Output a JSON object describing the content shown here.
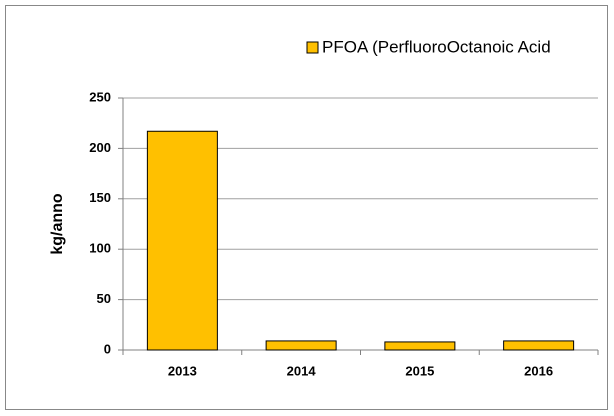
{
  "chart_data": {
    "type": "bar",
    "y_label": "kg/anno",
    "categories": [
      "2013",
      "2014",
      "2015",
      "2016"
    ],
    "series": [
      {
        "name": "PFOA (PerfluoroOctanoic Acid",
        "color": "#ffc000",
        "values": [
          217,
          9,
          8,
          9
        ]
      }
    ],
    "ylim": [
      0,
      250
    ],
    "yticks": [
      0,
      50,
      100,
      150,
      200,
      250
    ],
    "grid": true,
    "legend": "top"
  }
}
